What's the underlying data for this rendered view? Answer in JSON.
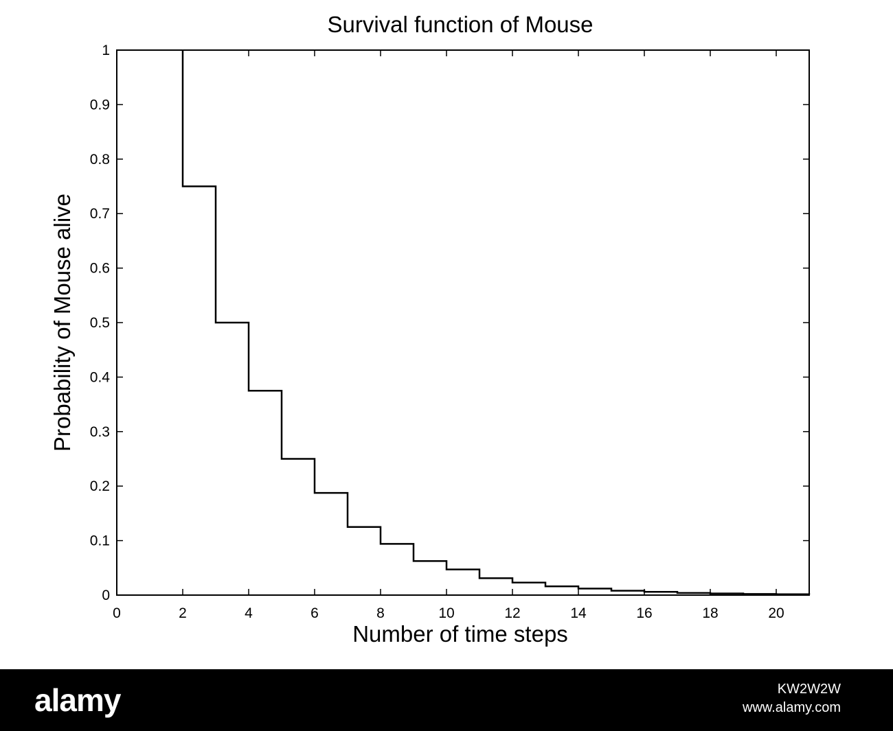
{
  "chart_data": {
    "type": "line",
    "step": true,
    "title": "Survival function of Mouse",
    "xlabel": "Number of time steps",
    "ylabel": "Probability of Mouse alive",
    "xlim": [
      0,
      21
    ],
    "ylim": [
      0,
      1
    ],
    "xticks": [
      0,
      2,
      4,
      6,
      8,
      10,
      12,
      14,
      16,
      18,
      20
    ],
    "yticks": [
      0,
      0.1,
      0.2,
      0.3,
      0.4,
      0.5,
      0.6,
      0.7,
      0.8,
      0.9,
      1
    ],
    "grid": false,
    "series": [
      {
        "x": [
          2,
          3,
          4,
          5,
          6,
          7,
          8,
          9,
          10,
          11,
          12,
          13,
          14,
          15,
          16,
          17,
          18,
          19,
          20,
          21
        ],
        "y": [
          0.75,
          0.5,
          0.375,
          0.25,
          0.1875,
          0.125,
          0.094,
          0.0625,
          0.047,
          0.031,
          0.023,
          0.016,
          0.012,
          0.008,
          0.006,
          0.004,
          0.003,
          0.002,
          0.0015,
          0.001
        ],
        "start_y": 1,
        "color": "#000000"
      }
    ]
  },
  "watermark": {
    "logo": "alamy",
    "image_id": "KW2W2W",
    "website": "www.alamy.com"
  }
}
